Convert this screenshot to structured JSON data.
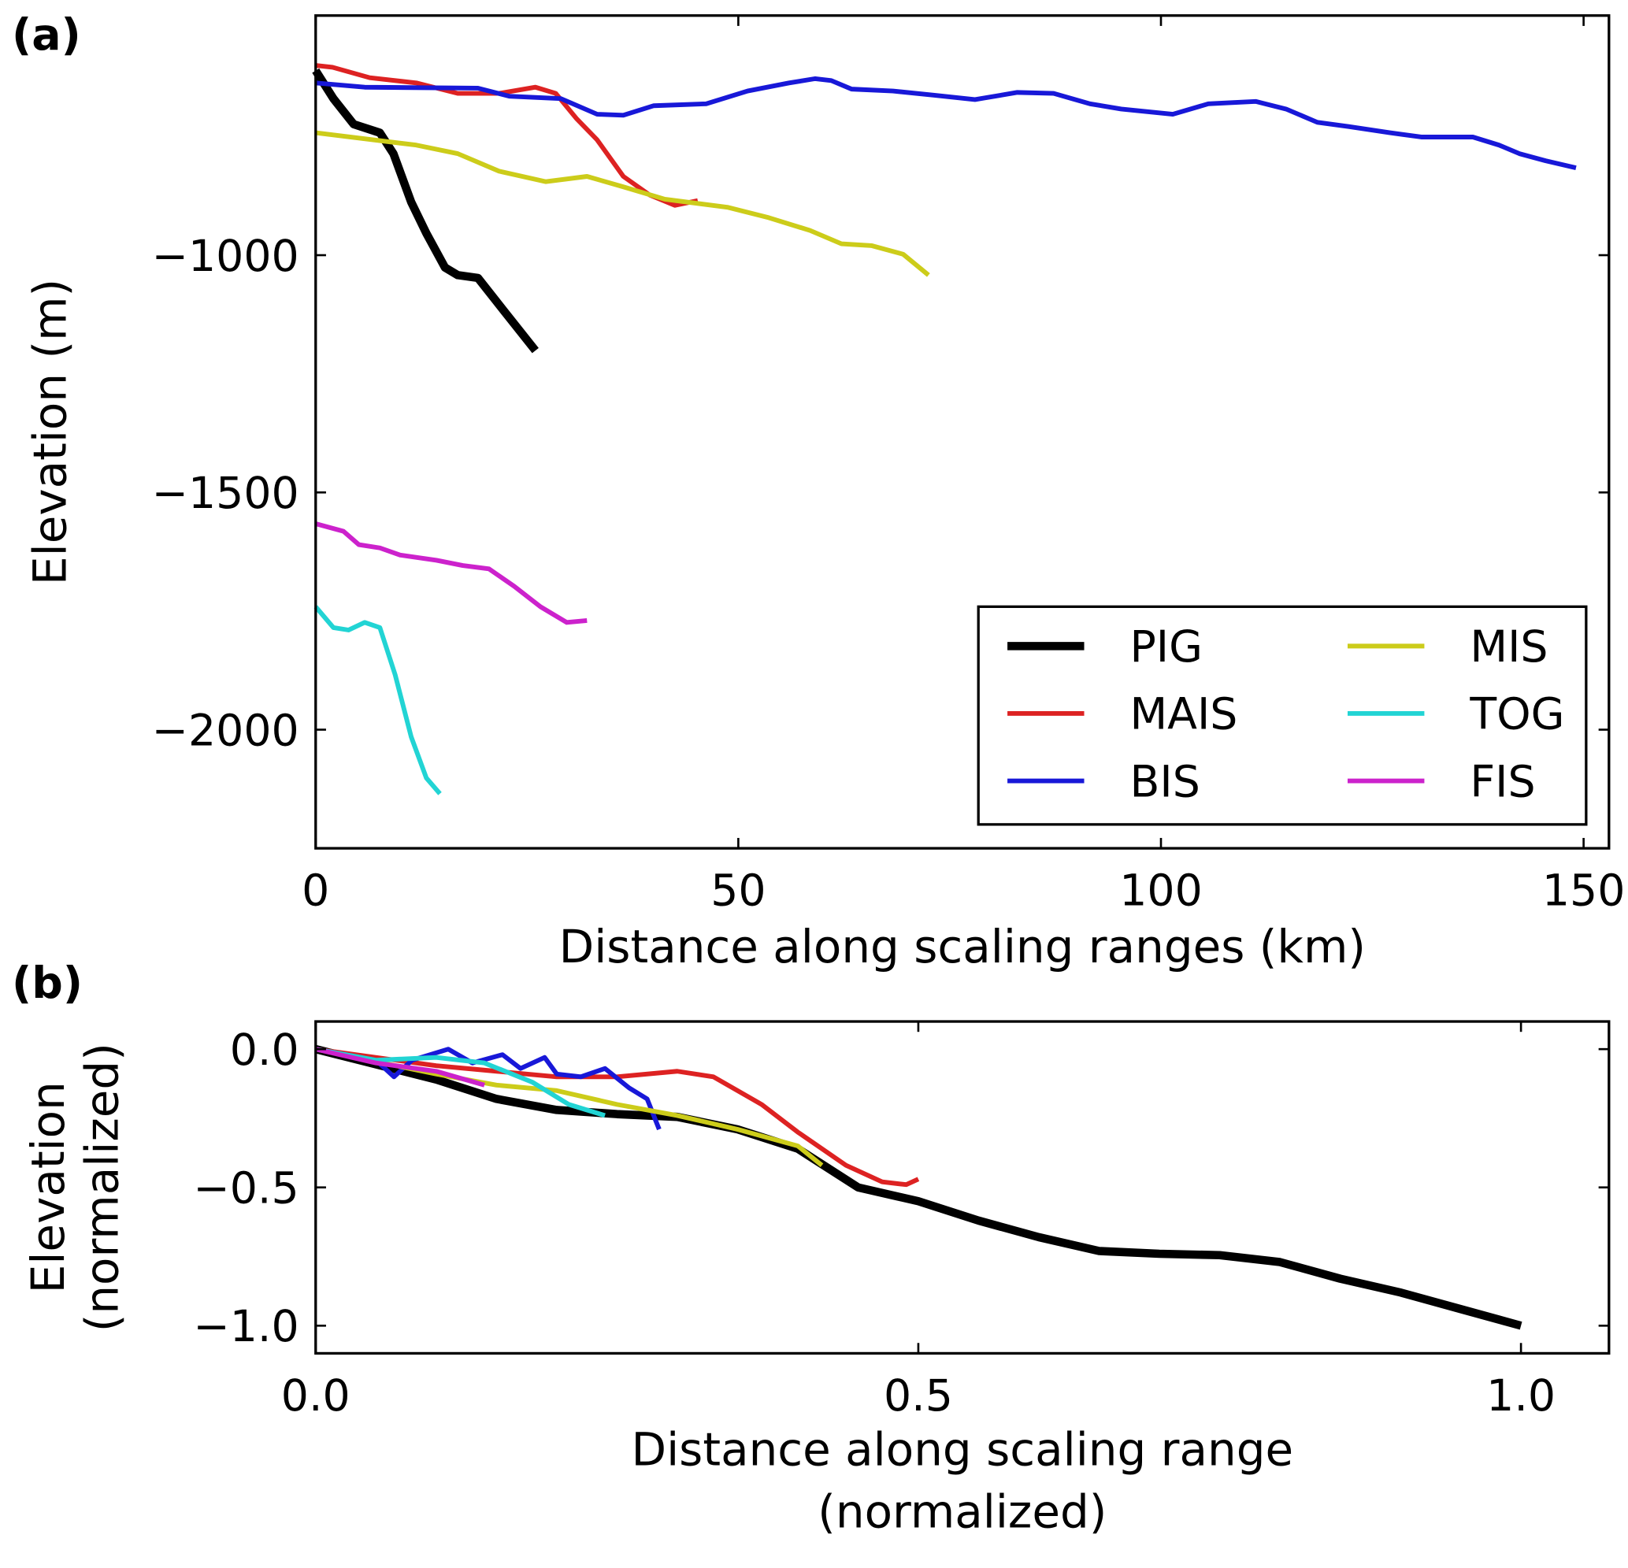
{
  "chart_data": [
    {
      "type": "line",
      "panel_label": "(a)",
      "xlabel": [
        "Distance along scaling ranges (km)"
      ],
      "ylabel": [
        "Elevation (m)"
      ],
      "xlim": [
        0,
        153
      ],
      "ylim": [
        -2250,
        -495
      ],
      "xticks": [
        0,
        50,
        100,
        150
      ],
      "yticks": [
        {
          "value": -2000,
          "label": "−2000"
        },
        {
          "value": -1500,
          "label": "−1500"
        },
        {
          "value": -1000,
          "label": "−1000"
        }
      ],
      "grid": false,
      "legend": "lower right",
      "legend_columns": 2,
      "series": [
        {
          "name": "PIG",
          "color": "#000000",
          "linewidth": 8,
          "x": [
            0,
            2.1,
            4.5,
            7.6,
            9.2,
            11.3,
            13.1,
            15.3,
            16.8,
            19.2,
            22.3,
            26
          ],
          "values": [
            -611,
            -670,
            -724,
            -742,
            -786,
            -888,
            -954,
            -1026,
            -1042,
            -1048,
            -1118,
            -1201
          ]
        },
        {
          "name": "MAIS",
          "color": "#dd2222",
          "linewidth": 4.5,
          "x": [
            0,
            2,
            6.4,
            11.9,
            16.8,
            21.7,
            26,
            28.4,
            30.9,
            33.3,
            36.4,
            39.5,
            42.5,
            45.2
          ],
          "values": [
            -600,
            -604,
            -626,
            -637,
            -659,
            -659,
            -646,
            -659,
            -713,
            -757,
            -834,
            -873,
            -895,
            -885
          ]
        },
        {
          "name": "BIS",
          "color": "#1818d8",
          "linewidth": 4.5,
          "x": [
            0,
            5.8,
            19.2,
            22.9,
            29,
            33.3,
            36.4,
            40,
            46.2,
            51.1,
            56,
            59.1,
            61,
            63.4,
            68.3,
            73.2,
            78,
            83,
            87.3,
            91.6,
            95.3,
            101.4,
            105.6,
            111.2,
            114.8,
            118.5,
            122.2,
            127.1,
            130.8,
            136.9,
            140,
            142.4,
            145.5,
            149.1
          ],
          "values": [
            -637,
            -646,
            -648,
            -665,
            -670,
            -703,
            -705,
            -685,
            -681,
            -654,
            -637,
            -628,
            -632,
            -650,
            -654,
            -663,
            -672,
            -657,
            -659,
            -681,
            -692,
            -703,
            -681,
            -676,
            -692,
            -720,
            -729,
            -742,
            -751,
            -751,
            -768,
            -786,
            -801,
            -816
          ]
        },
        {
          "name": "MIS",
          "color": "#cccc1a",
          "linewidth": 4.5,
          "x": [
            0,
            11.9,
            16.8,
            21.7,
            27.2,
            32.1,
            36.4,
            41.3,
            48.7,
            53.6,
            58.5,
            62.2,
            65.8,
            69.5,
            72.5
          ],
          "values": [
            -742,
            -768,
            -786,
            -823,
            -845,
            -834,
            -856,
            -882,
            -899,
            -921,
            -948,
            -976,
            -980,
            -998,
            -1042
          ]
        },
        {
          "name": "TOG",
          "color": "#22d4d4",
          "linewidth": 4.5,
          "x": [
            0,
            2.1,
            3.9,
            5.8,
            7.6,
            9.4,
            11.3,
            13.1,
            14.7
          ],
          "values": [
            -1741,
            -1785,
            -1790,
            -1774,
            -1785,
            -1884,
            -2015,
            -2102,
            -2135
          ]
        },
        {
          "name": "FIS",
          "color": "#cc22cc",
          "linewidth": 4.5,
          "x": [
            0,
            3.3,
            5.1,
            7.6,
            10,
            14.3,
            17.4,
            20.5,
            23.5,
            26.6,
            29.7,
            32.1
          ],
          "values": [
            -1566,
            -1582,
            -1610,
            -1617,
            -1632,
            -1643,
            -1654,
            -1661,
            -1698,
            -1741,
            -1774,
            -1770
          ]
        }
      ]
    },
    {
      "type": "line",
      "panel_label": "(b)",
      "xlabel": [
        "Distance along scaling range",
        "(normalized)"
      ],
      "ylabel": [
        "Elevation",
        "(normalized)"
      ],
      "xlim": [
        0,
        1.073
      ],
      "ylim": [
        -1.1,
        0.1
      ],
      "xticks": [
        {
          "value": 0,
          "label": "0.0"
        },
        0.5,
        {
          "value": 1,
          "label": "1.0"
        }
      ],
      "yticks": [
        {
          "value": -1,
          "label": "−1.0"
        },
        {
          "value": -0.5,
          "label": "−0.5"
        },
        {
          "value": 0,
          "label": "0.0"
        }
      ],
      "grid": false,
      "series": [
        {
          "color": "#000000",
          "linewidth": 8,
          "x": [
            0,
            0.1,
            0.15,
            0.2,
            0.25,
            0.3,
            0.35,
            0.4,
            0.45,
            0.5,
            0.55,
            0.6,
            0.65,
            0.7,
            0.75,
            0.8,
            0.85,
            0.9,
            0.95,
            1.0
          ],
          "values": [
            0,
            -0.11,
            -0.18,
            -0.22,
            -0.235,
            -0.245,
            -0.29,
            -0.36,
            -0.5,
            -0.55,
            -0.62,
            -0.68,
            -0.73,
            -0.74,
            -0.745,
            -0.77,
            -0.83,
            -0.88,
            -0.94,
            -1.0
          ]
        },
        {
          "color": "#dd2222",
          "linewidth": 4.5,
          "x": [
            0,
            0.1,
            0.15,
            0.2,
            0.25,
            0.3,
            0.33,
            0.37,
            0.4,
            0.44,
            0.47,
            0.49,
            0.5
          ],
          "values": [
            0,
            -0.06,
            -0.08,
            -0.1,
            -0.1,
            -0.08,
            -0.1,
            -0.2,
            -0.3,
            -0.42,
            -0.48,
            -0.49,
            -0.47
          ]
        },
        {
          "color": "#1818d8",
          "linewidth": 4.5,
          "x": [
            0,
            0.05,
            0.065,
            0.08,
            0.11,
            0.13,
            0.155,
            0.17,
            0.19,
            0.2,
            0.22,
            0.24,
            0.26,
            0.275,
            0.285
          ],
          "values": [
            0,
            -0.04,
            -0.1,
            -0.04,
            0,
            -0.05,
            -0.02,
            -0.07,
            -0.03,
            -0.09,
            -0.1,
            -0.07,
            -0.14,
            -0.18,
            -0.29
          ]
        },
        {
          "color": "#cccc1a",
          "linewidth": 4.5,
          "x": [
            0,
            0.1,
            0.15,
            0.2,
            0.25,
            0.3,
            0.35,
            0.4,
            0.42
          ],
          "values": [
            0,
            -0.09,
            -0.13,
            -0.15,
            -0.2,
            -0.24,
            -0.29,
            -0.35,
            -0.42
          ]
        },
        {
          "color": "#22d4d4",
          "linewidth": 4.5,
          "x": [
            0,
            0.05,
            0.1,
            0.14,
            0.18,
            0.21,
            0.24
          ],
          "values": [
            0,
            -0.04,
            -0.03,
            -0.05,
            -0.12,
            -0.2,
            -0.24
          ]
        },
        {
          "color": "#cc22cc",
          "linewidth": 4.5,
          "x": [
            0,
            0.05,
            0.1,
            0.14
          ],
          "values": [
            0,
            -0.05,
            -0.08,
            -0.13
          ]
        }
      ]
    }
  ]
}
